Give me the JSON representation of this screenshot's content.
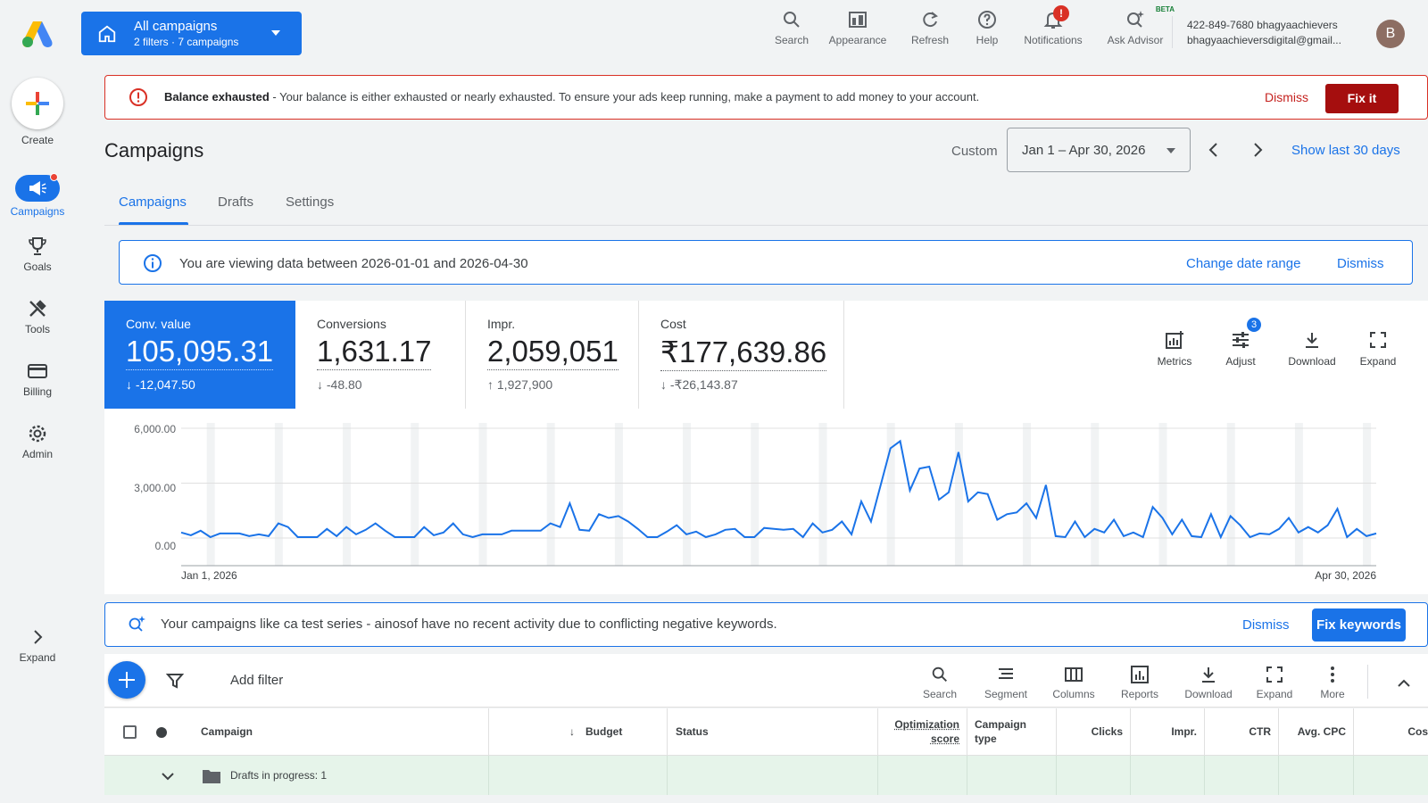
{
  "header": {
    "account_selector": {
      "title": "All campaigns",
      "subtitle": "2 filters · 7 campaigns"
    },
    "tools": [
      {
        "label": "Search",
        "icon": "search-icon"
      },
      {
        "label": "Appearance",
        "icon": "appearance-icon"
      },
      {
        "label": "Refresh",
        "icon": "refresh-icon"
      },
      {
        "label": "Help",
        "icon": "help-icon"
      },
      {
        "label": "Notifications",
        "icon": "bell-icon",
        "badge": "!"
      },
      {
        "label": "Ask Advisor",
        "icon": "advisor-icon",
        "tag": "BETA"
      }
    ],
    "account": {
      "line1": "422-849-7680 bhagyaachievers",
      "line2": "bhagyaachieversdigital@gmail...",
      "avatar": "B"
    }
  },
  "sidebar": {
    "items": [
      {
        "label": "Create",
        "icon": "plus-icon"
      },
      {
        "label": "Campaigns",
        "icon": "megaphone-icon"
      },
      {
        "label": "Goals",
        "icon": "trophy-icon"
      },
      {
        "label": "Tools",
        "icon": "tools-icon"
      },
      {
        "label": "Billing",
        "icon": "credit-card-icon"
      },
      {
        "label": "Admin",
        "icon": "gear-icon"
      },
      {
        "label": "Expand",
        "icon": "chevron-right-icon"
      }
    ]
  },
  "alert": {
    "title": "Balance exhausted",
    "message": " - Your balance is either exhausted or nearly exhausted. To ensure your ads keep running, make a payment to add money to your account.",
    "dismiss": "Dismiss",
    "action": "Fix it"
  },
  "page": {
    "title": "Campaigns",
    "date_mode": "Custom",
    "date_range": "Jan 1 – Apr 30, 2026",
    "show_last": "Show last 30 days",
    "tabs": [
      "Campaigns",
      "Drafts",
      "Settings"
    ]
  },
  "info": {
    "message": "You are viewing data between 2026-01-01 and 2026-04-30",
    "change": "Change date range",
    "dismiss": "Dismiss"
  },
  "scorecards": [
    {
      "label": "Conv. value",
      "value": "105,095.31",
      "delta": "-12,047.50",
      "dir": "down"
    },
    {
      "label": "Conversions",
      "value": "1,631.17",
      "delta": "-48.80",
      "dir": "down"
    },
    {
      "label": "Impr.",
      "value": "2,059,051",
      "delta": "1,927,900",
      "dir": "up"
    },
    {
      "label": "Cost",
      "value": "₹177,639.86",
      "delta": "-₹26,143.87",
      "dir": "down"
    }
  ],
  "card_tools": [
    {
      "label": "Metrics",
      "icon": "metrics-icon"
    },
    {
      "label": "Adjust",
      "icon": "adjust-icon",
      "badge": "3"
    },
    {
      "label": "Download",
      "icon": "download-icon"
    },
    {
      "label": "Expand",
      "icon": "expand-icon"
    }
  ],
  "chart_data": {
    "type": "line",
    "x_start_label": "Jan 1, 2026",
    "x_end_label": "Apr 30, 2026",
    "y_ticks": [
      "6,000.00",
      "3,000.00",
      "0.00"
    ],
    "ylim": [
      0,
      6000
    ],
    "grid": true,
    "color": "#1a73e8",
    "values": [
      300,
      150,
      400,
      50,
      250,
      250,
      250,
      100,
      200,
      100,
      800,
      600,
      50,
      50,
      50,
      500,
      100,
      600,
      200,
      450,
      800,
      400,
      50,
      50,
      50,
      600,
      150,
      300,
      800,
      200,
      50,
      200,
      200,
      200,
      400,
      400,
      400,
      400,
      800,
      600,
      1900,
      450,
      400,
      1300,
      1100,
      1200,
      900,
      500,
      50,
      50,
      350,
      700,
      200,
      350,
      50,
      200,
      450,
      500,
      50,
      50,
      550,
      500,
      450,
      500,
      50,
      800,
      300,
      450,
      900,
      200,
      2000,
      900,
      2900,
      4900,
      5300,
      2600,
      3800,
      3900,
      2100,
      2500,
      4700,
      2000,
      2500,
      2400,
      1000,
      1300,
      1400,
      1900,
      1100,
      2900,
      100,
      50,
      900,
      50,
      500,
      300,
      1000,
      100,
      300,
      50,
      1700,
      1100,
      200,
      1000,
      100,
      50,
      1300,
      50,
      1200,
      700,
      50,
      250,
      200,
      500,
      1100,
      300,
      600,
      300,
      700,
      1600,
      50,
      500,
      100,
      250
    ]
  },
  "keyword_alert": {
    "message": "Your campaigns like ca test series - ainosof have no recent activity due to conflicting negative keywords.",
    "dismiss": "Dismiss",
    "action": "Fix keywords"
  },
  "table_toolbar": {
    "add_filter": "Add filter",
    "tools": [
      {
        "label": "Search",
        "icon": "search-icon"
      },
      {
        "label": "Segment",
        "icon": "segment-icon"
      },
      {
        "label": "Columns",
        "icon": "columns-icon"
      },
      {
        "label": "Reports",
        "icon": "reports-icon"
      },
      {
        "label": "Download",
        "icon": "download-icon"
      },
      {
        "label": "Expand",
        "icon": "expand-icon"
      },
      {
        "label": "More",
        "icon": "more-vert-icon"
      }
    ]
  },
  "table": {
    "columns": [
      "Campaign",
      "Budget",
      "Status",
      "Optimization score",
      "Campaign type",
      "Clicks",
      "Impr.",
      "CTR",
      "Avg. CPC",
      "Cos"
    ],
    "opt_score_lines": [
      "Optimization",
      "score"
    ],
    "campaign_type_lines": [
      "Campaign",
      "type"
    ],
    "drafts_row": "Drafts in progress: 1"
  }
}
